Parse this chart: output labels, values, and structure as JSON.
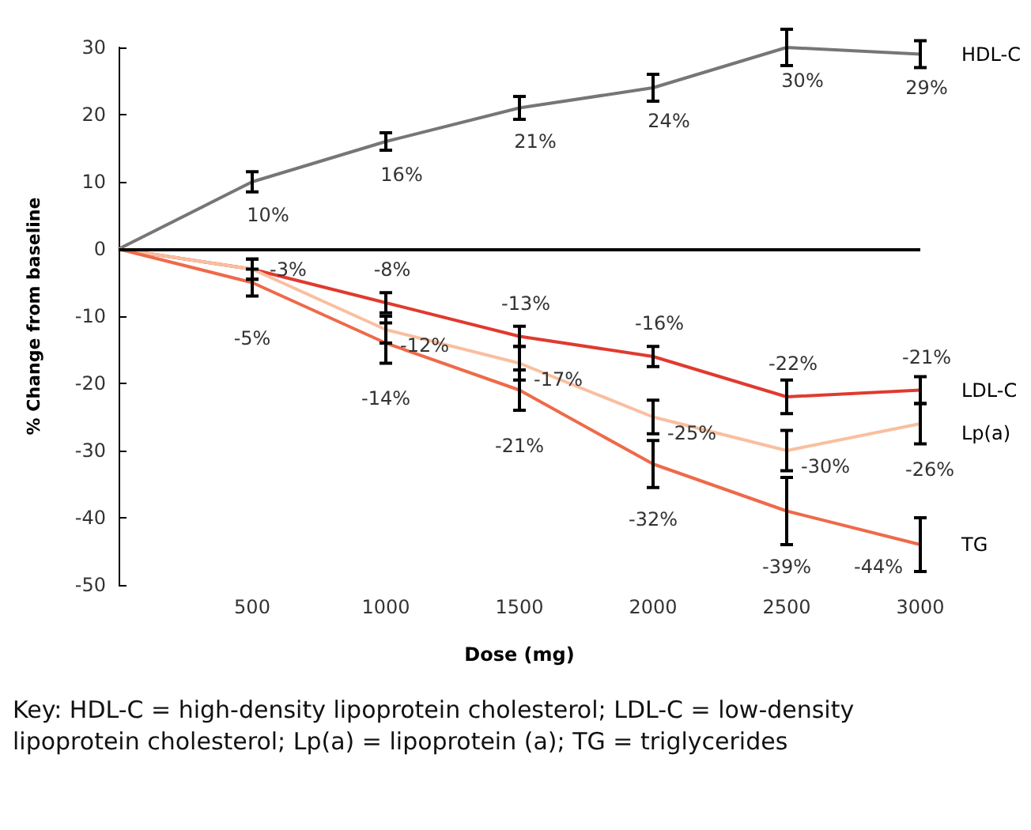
{
  "chart_data": {
    "type": "line",
    "xlabel": "Dose (mg)",
    "ylabel": "% Change from baseline",
    "x": [
      0,
      500,
      1000,
      1500,
      2000,
      2500,
      3000
    ],
    "xlim": [
      0,
      3000
    ],
    "xticks": [
      500,
      1000,
      1500,
      2000,
      2500,
      3000
    ],
    "ylim": [
      -50,
      30
    ],
    "yticks": [
      -50,
      -40,
      -30,
      -20,
      -10,
      0,
      10,
      20,
      30
    ],
    "grid": false,
    "legend": false,
    "marker": "none",
    "line_style": "solid",
    "ref_lines": [
      {
        "axis": "y",
        "value": 0,
        "color": "#000000"
      }
    ],
    "series": [
      {
        "name": "HDL-C",
        "color": "#767676",
        "values": [
          0,
          10,
          16,
          21,
          24,
          30,
          29
        ],
        "errors": [
          null,
          1.5,
          1.3,
          1.7,
          2,
          2.7,
          2
        ],
        "value_labels": [
          null,
          "10%",
          "16%",
          "21%",
          "24%",
          "30%",
          "29%"
        ]
      },
      {
        "name": "LDL-C",
        "color": "#e03a2f",
        "values": [
          0,
          -3,
          -8,
          -13,
          -16,
          -22,
          -21
        ],
        "errors": [
          null,
          1.5,
          1.5,
          1.5,
          1.5,
          2.5,
          2
        ],
        "value_labels": [
          null,
          "-3%",
          "-8%",
          "-13%",
          "-16%",
          "-22%",
          "-21%"
        ]
      },
      {
        "name": "Lp(a)",
        "color": "#f9bf9f",
        "values": [
          0,
          -3,
          -12,
          -17,
          -25,
          -30,
          -26
        ],
        "errors": [
          null,
          1.5,
          2,
          2.5,
          2.5,
          3,
          3
        ],
        "value_labels": [
          null,
          null,
          "-12%",
          "-17%",
          "-25%",
          "-30%",
          "-26%"
        ]
      },
      {
        "name": "TG",
        "color": "#ee6a4a",
        "values": [
          0,
          -5,
          -14,
          -21,
          -32,
          -39,
          -44
        ],
        "errors": [
          null,
          2,
          3,
          3,
          3.5,
          5,
          4
        ],
        "value_labels": [
          null,
          "-5%",
          "-14%",
          "-21%",
          "-32%",
          "-39%",
          "-44%"
        ]
      }
    ],
    "annotations": [
      "Key: HDL-C = high-density lipoprotein cholesterol; LDL-C = low-density lipoprotein cholesterol; Lp(a) = lipoprotein (a); TG = triglycerides"
    ]
  }
}
